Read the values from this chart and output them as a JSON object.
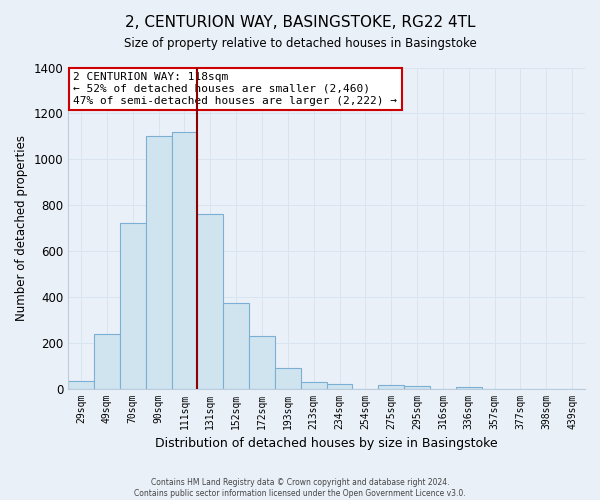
{
  "title": "2, CENTURION WAY, BASINGSTOKE, RG22 4TL",
  "subtitle": "Size of property relative to detached houses in Basingstoke",
  "xlabel": "Distribution of detached houses by size in Basingstoke",
  "ylabel": "Number of detached properties",
  "footnote1": "Contains HM Land Registry data © Crown copyright and database right 2024.",
  "footnote2": "Contains public sector information licensed under the Open Government Licence v3.0.",
  "bar_labels": [
    "29sqm",
    "49sqm",
    "70sqm",
    "90sqm",
    "111sqm",
    "131sqm",
    "152sqm",
    "172sqm",
    "193sqm",
    "213sqm",
    "234sqm",
    "254sqm",
    "275sqm",
    "295sqm",
    "316sqm",
    "336sqm",
    "357sqm",
    "377sqm",
    "398sqm",
    "439sqm"
  ],
  "bar_values": [
    35,
    240,
    720,
    1100,
    1120,
    760,
    375,
    230,
    90,
    30,
    20,
    0,
    15,
    10,
    0,
    5,
    0,
    0,
    0,
    0
  ],
  "bar_color": "#d0e4f0",
  "bar_edge_color": "#7bafd4",
  "vline_bar_index": 5,
  "vline_color": "#8b0000",
  "ylim": [
    0,
    1400
  ],
  "yticks": [
    0,
    200,
    400,
    600,
    800,
    1000,
    1200,
    1400
  ],
  "annotation_title": "2 CENTURION WAY: 118sqm",
  "annotation_line1": "← 52% of detached houses are smaller (2,460)",
  "annotation_line2": "47% of semi-detached houses are larger (2,222) →",
  "annotation_box_color": "#ffffff",
  "annotation_box_edge": "#cc0000",
  "grid_color": "#d8e4f0",
  "background_color": "#eaf0f8",
  "plot_bg_color": "#eaf0f8"
}
